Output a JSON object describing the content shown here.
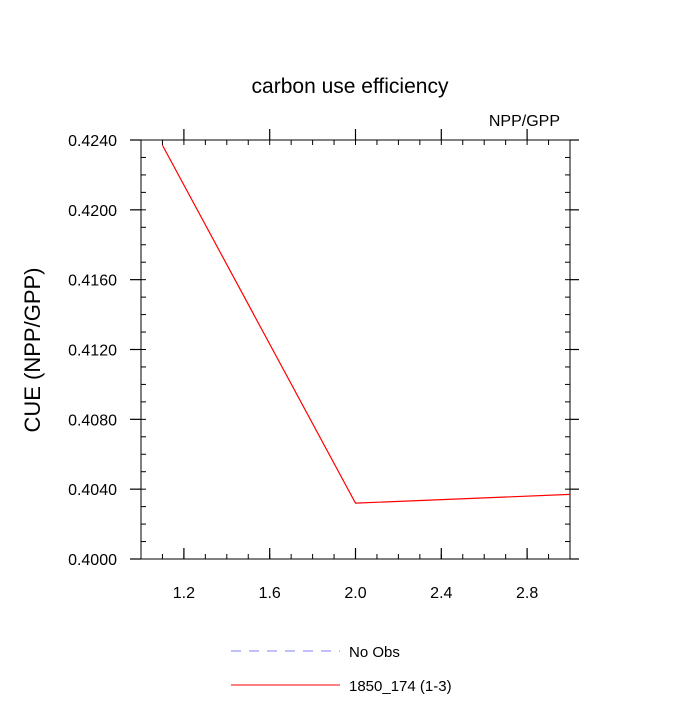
{
  "chart_data": {
    "type": "line",
    "title": "carbon use efficiency",
    "units_label": "NPP/GPP",
    "xlabel": "",
    "ylabel": "CUE  (NPP/GPP)",
    "xlim": [
      1.0,
      3.0
    ],
    "ylim": [
      0.4,
      0.424
    ],
    "x_ticks": [
      1.2,
      1.6,
      2.0,
      2.4,
      2.8
    ],
    "x_tick_labels": [
      "1.2",
      "1.6",
      "2.0",
      "2.4",
      "2.8"
    ],
    "y_ticks": [
      0.4,
      0.404,
      0.408,
      0.412,
      0.416,
      0.42,
      0.424
    ],
    "y_tick_labels": [
      "0.4000",
      "0.4040",
      "0.4080",
      "0.4120",
      "0.4160",
      "0.4200",
      "0.4240"
    ],
    "grid": false,
    "legend_position": "bottom-center",
    "series": [
      {
        "name": "No Obs",
        "color": "#8080ff",
        "style": "dashed",
        "x": [],
        "y": []
      },
      {
        "name": "1850_174 (1-3)",
        "color": "#ff0000",
        "style": "solid",
        "x": [
          1.1,
          2.0,
          3.0
        ],
        "y": [
          0.4237,
          0.4032,
          0.4037
        ]
      }
    ]
  }
}
